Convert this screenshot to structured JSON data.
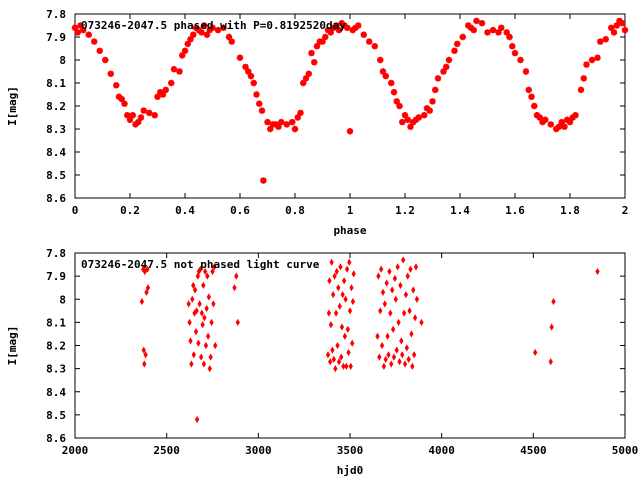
{
  "chart_data": [
    {
      "type": "scatter",
      "title": "073246-2047.5 phased with P=0.8192520day",
      "xlabel": "phase",
      "ylabel": "I[mag]",
      "xlim": [
        0,
        2
      ],
      "ylim": [
        8.6,
        7.8
      ],
      "y_inverted": true,
      "grid": false,
      "x_ticks": [
        "0",
        "0.2",
        "0.4",
        "0.6",
        "0.8",
        "1",
        "1.2",
        "1.4",
        "1.6",
        "1.8",
        "2"
      ],
      "y_ticks": [
        "7.8",
        "7.9",
        "8",
        "8.1",
        "8.2",
        "8.3",
        "8.4",
        "8.5",
        "8.6"
      ],
      "marker_color": "#ff0000",
      "marker": "filled-circle",
      "points": [
        [
          0.0,
          7.86
        ],
        [
          0.01,
          7.88
        ],
        [
          0.02,
          7.85
        ],
        [
          0.03,
          7.87
        ],
        [
          0.05,
          7.89
        ],
        [
          0.07,
          7.92
        ],
        [
          0.09,
          7.96
        ],
        [
          0.11,
          8.0
        ],
        [
          0.13,
          8.06
        ],
        [
          0.15,
          8.11
        ],
        [
          0.16,
          8.16
        ],
        [
          0.17,
          8.17
        ],
        [
          0.18,
          8.19
        ],
        [
          0.19,
          8.24
        ],
        [
          0.2,
          8.26
        ],
        [
          0.21,
          8.24
        ],
        [
          0.22,
          8.28
        ],
        [
          0.23,
          8.27
        ],
        [
          0.24,
          8.25
        ],
        [
          0.25,
          8.22
        ],
        [
          0.27,
          8.23
        ],
        [
          0.29,
          8.24
        ],
        [
          0.3,
          8.16
        ],
        [
          0.31,
          8.14
        ],
        [
          0.32,
          8.15
        ],
        [
          0.33,
          8.13
        ],
        [
          0.35,
          8.1
        ],
        [
          0.36,
          8.04
        ],
        [
          0.38,
          8.05
        ],
        [
          0.39,
          7.98
        ],
        [
          0.4,
          7.96
        ],
        [
          0.41,
          7.93
        ],
        [
          0.42,
          7.91
        ],
        [
          0.43,
          7.89
        ],
        [
          0.44,
          7.86
        ],
        [
          0.45,
          7.87
        ],
        [
          0.46,
          7.88
        ],
        [
          0.47,
          7.85
        ],
        [
          0.48,
          7.89
        ],
        [
          0.49,
          7.87
        ],
        [
          0.5,
          7.86
        ],
        [
          0.52,
          7.87
        ],
        [
          0.54,
          7.86
        ],
        [
          0.56,
          7.9
        ],
        [
          0.57,
          7.92
        ],
        [
          0.6,
          7.99
        ],
        [
          0.62,
          8.03
        ],
        [
          0.63,
          8.05
        ],
        [
          0.64,
          8.07
        ],
        [
          0.65,
          8.1
        ],
        [
          0.66,
          8.15
        ],
        [
          0.67,
          8.19
        ],
        [
          0.68,
          8.22
        ],
        [
          0.685,
          8.524
        ],
        [
          0.7,
          8.27
        ],
        [
          0.71,
          8.3
        ],
        [
          0.72,
          8.28
        ],
        [
          0.73,
          8.28
        ],
        [
          0.74,
          8.29
        ],
        [
          0.75,
          8.27
        ],
        [
          0.77,
          8.28
        ],
        [
          0.79,
          8.27
        ],
        [
          0.8,
          8.3
        ],
        [
          0.81,
          8.25
        ],
        [
          0.82,
          8.23
        ],
        [
          0.83,
          8.1
        ],
        [
          0.84,
          8.08
        ],
        [
          0.85,
          8.06
        ],
        [
          0.86,
          7.97
        ],
        [
          0.87,
          8.01
        ],
        [
          0.88,
          7.94
        ],
        [
          0.89,
          7.92
        ],
        [
          0.9,
          7.92
        ],
        [
          0.91,
          7.9
        ],
        [
          0.92,
          7.87
        ],
        [
          0.93,
          7.88
        ],
        [
          0.94,
          7.86
        ],
        [
          0.95,
          7.85
        ],
        [
          0.96,
          7.87
        ],
        [
          0.97,
          7.84
        ],
        [
          0.98,
          7.85
        ],
        [
          0.99,
          7.86
        ],
        [
          1.0,
          8.31
        ],
        [
          1.01,
          7.87
        ],
        [
          1.02,
          7.86
        ],
        [
          1.03,
          7.85
        ],
        [
          1.05,
          7.89
        ],
        [
          1.07,
          7.92
        ],
        [
          1.09,
          7.94
        ],
        [
          1.11,
          8.0
        ],
        [
          1.12,
          8.05
        ],
        [
          1.13,
          8.07
        ],
        [
          1.15,
          8.1
        ],
        [
          1.16,
          8.14
        ],
        [
          1.17,
          8.18
        ],
        [
          1.18,
          8.2
        ],
        [
          1.19,
          8.27
        ],
        [
          1.2,
          8.24
        ],
        [
          1.21,
          8.26
        ],
        [
          1.22,
          8.29
        ],
        [
          1.23,
          8.27
        ],
        [
          1.24,
          8.26
        ],
        [
          1.25,
          8.25
        ],
        [
          1.27,
          8.24
        ],
        [
          1.28,
          8.21
        ],
        [
          1.29,
          8.22
        ],
        [
          1.3,
          8.18
        ],
        [
          1.31,
          8.13
        ],
        [
          1.32,
          8.08
        ],
        [
          1.34,
          8.05
        ],
        [
          1.35,
          8.03
        ],
        [
          1.36,
          8.0
        ],
        [
          1.38,
          7.96
        ],
        [
          1.39,
          7.93
        ],
        [
          1.41,
          7.9
        ],
        [
          1.43,
          7.85
        ],
        [
          1.44,
          7.86
        ],
        [
          1.45,
          7.87
        ],
        [
          1.46,
          7.83
        ],
        [
          1.48,
          7.84
        ],
        [
          1.5,
          7.88
        ],
        [
          1.52,
          7.87
        ],
        [
          1.54,
          7.88
        ],
        [
          1.55,
          7.86
        ],
        [
          1.57,
          7.88
        ],
        [
          1.58,
          7.9
        ],
        [
          1.59,
          7.94
        ],
        [
          1.6,
          7.97
        ],
        [
          1.62,
          8.0
        ],
        [
          1.64,
          8.05
        ],
        [
          1.65,
          8.13
        ],
        [
          1.66,
          8.16
        ],
        [
          1.67,
          8.2
        ],
        [
          1.68,
          8.24
        ],
        [
          1.69,
          8.25
        ],
        [
          1.7,
          8.27
        ],
        [
          1.71,
          8.26
        ],
        [
          1.73,
          8.28
        ],
        [
          1.75,
          8.3
        ],
        [
          1.76,
          8.29
        ],
        [
          1.77,
          8.27
        ],
        [
          1.78,
          8.29
        ],
        [
          1.79,
          8.26
        ],
        [
          1.8,
          8.27
        ],
        [
          1.81,
          8.25
        ],
        [
          1.82,
          8.24
        ],
        [
          1.84,
          8.13
        ],
        [
          1.85,
          8.08
        ],
        [
          1.86,
          8.02
        ],
        [
          1.88,
          8.0
        ],
        [
          1.9,
          7.99
        ],
        [
          1.91,
          7.92
        ],
        [
          1.93,
          7.91
        ],
        [
          1.95,
          7.86
        ],
        [
          1.96,
          7.88
        ],
        [
          1.97,
          7.85
        ],
        [
          1.98,
          7.83
        ],
        [
          1.99,
          7.84
        ],
        [
          2.0,
          7.87
        ]
      ]
    },
    {
      "type": "scatter",
      "title": "073246-2047.5 not phased light curve",
      "xlabel": "hjd0",
      "ylabel": "I[mag]",
      "xlim": [
        2000,
        5000
      ],
      "ylim": [
        8.6,
        7.8
      ],
      "y_inverted": true,
      "grid": false,
      "x_ticks": [
        "2000",
        "2500",
        "3000",
        "3500",
        "4000",
        "4500",
        "5000"
      ],
      "y_ticks": [
        "7.8",
        "7.9",
        "8",
        "8.1",
        "8.2",
        "8.3",
        "8.4",
        "8.5",
        "8.6"
      ],
      "marker_color": "#ff0000",
      "marker": "diamond",
      "points": [
        [
          2365,
          8.01
        ],
        [
          2372,
          7.87
        ],
        [
          2375,
          8.22
        ],
        [
          2378,
          8.28
        ],
        [
          2381,
          7.88
        ],
        [
          2385,
          8.24
        ],
        [
          2390,
          7.97
        ],
        [
          2395,
          7.87
        ],
        [
          2398,
          7.95
        ],
        [
          2620,
          8.02
        ],
        [
          2625,
          8.1
        ],
        [
          2630,
          8.18
        ],
        [
          2635,
          8.28
        ],
        [
          2640,
          8.0
        ],
        [
          2645,
          7.94
        ],
        [
          2648,
          8.24
        ],
        [
          2652,
          8.06
        ],
        [
          2655,
          7.96
        ],
        [
          2660,
          8.14
        ],
        [
          2663,
          8.05
        ],
        [
          2666,
          8.52
        ],
        [
          2670,
          7.9
        ],
        [
          2673,
          8.19
        ],
        [
          2676,
          7.88
        ],
        [
          2680,
          8.02
        ],
        [
          2684,
          7.87
        ],
        [
          2688,
          8.25
        ],
        [
          2692,
          8.06
        ],
        [
          2696,
          8.11
        ],
        [
          2700,
          7.94
        ],
        [
          2703,
          8.28
        ],
        [
          2706,
          8.08
        ],
        [
          2710,
          7.88
        ],
        [
          2714,
          8.2
        ],
        [
          2718,
          8.04
        ],
        [
          2722,
          7.9
        ],
        [
          2726,
          8.16
        ],
        [
          2730,
          7.99
        ],
        [
          2735,
          8.3
        ],
        [
          2740,
          8.25
        ],
        [
          2745,
          8.1
        ],
        [
          2750,
          7.88
        ],
        [
          2755,
          8.02
        ],
        [
          2760,
          7.86
        ],
        [
          2765,
          8.2
        ],
        [
          2870,
          7.95
        ],
        [
          2880,
          7.9
        ],
        [
          2888,
          8.1
        ],
        [
          3380,
          8.24
        ],
        [
          3385,
          8.06
        ],
        [
          3388,
          7.92
        ],
        [
          3392,
          8.27
        ],
        [
          3396,
          8.11
        ],
        [
          3400,
          7.84
        ],
        [
          3404,
          8.22
        ],
        [
          3408,
          7.98
        ],
        [
          3412,
          8.26
        ],
        [
          3416,
          7.9
        ],
        [
          3420,
          8.3
        ],
        [
          3424,
          8.06
        ],
        [
          3428,
          7.88
        ],
        [
          3432,
          8.2
        ],
        [
          3436,
          7.95
        ],
        [
          3440,
          8.27
        ],
        [
          3444,
          8.03
        ],
        [
          3448,
          7.86
        ],
        [
          3452,
          8.25
        ],
        [
          3456,
          8.12
        ],
        [
          3460,
          7.98
        ],
        [
          3464,
          8.29
        ],
        [
          3468,
          7.92
        ],
        [
          3472,
          8.16
        ],
        [
          3476,
          8.0
        ],
        [
          3480,
          8.29
        ],
        [
          3484,
          7.87
        ],
        [
          3488,
          8.13
        ],
        [
          3492,
          8.23
        ],
        [
          3496,
          7.84
        ],
        [
          3500,
          8.05
        ],
        [
          3504,
          8.29
        ],
        [
          3508,
          7.95
        ],
        [
          3512,
          8.19
        ],
        [
          3516,
          8.01
        ],
        [
          3520,
          7.89
        ],
        [
          3650,
          8.16
        ],
        [
          3655,
          7.9
        ],
        [
          3660,
          8.25
        ],
        [
          3665,
          8.05
        ],
        [
          3670,
          7.87
        ],
        [
          3675,
          8.2
        ],
        [
          3680,
          7.97
        ],
        [
          3685,
          8.29
        ],
        [
          3690,
          8.02
        ],
        [
          3695,
          8.26
        ],
        [
          3700,
          7.93
        ],
        [
          3705,
          8.16
        ],
        [
          3710,
          8.24
        ],
        [
          3715,
          7.88
        ],
        [
          3720,
          8.06
        ],
        [
          3725,
          8.28
        ],
        [
          3730,
          7.96
        ],
        [
          3735,
          8.13
        ],
        [
          3740,
          8.25
        ],
        [
          3745,
          7.91
        ],
        [
          3750,
          8.0
        ],
        [
          3755,
          8.22
        ],
        [
          3760,
          7.86
        ],
        [
          3765,
          8.1
        ],
        [
          3770,
          8.27
        ],
        [
          3775,
          7.94
        ],
        [
          3780,
          8.18
        ],
        [
          3785,
          8.24
        ],
        [
          3790,
          7.83
        ],
        [
          3795,
          8.06
        ],
        [
          3800,
          8.28
        ],
        [
          3805,
          7.98
        ],
        [
          3810,
          8.21
        ],
        [
          3815,
          7.9
        ],
        [
          3820,
          8.26
        ],
        [
          3825,
          8.05
        ],
        [
          3830,
          7.87
        ],
        [
          3835,
          8.15
        ],
        [
          3840,
          8.29
        ],
        [
          3845,
          7.96
        ],
        [
          3850,
          8.24
        ],
        [
          3855,
          8.08
        ],
        [
          3860,
          7.86
        ],
        [
          3865,
          8.0
        ],
        [
          3890,
          8.1
        ],
        [
          4510,
          8.23
        ],
        [
          4595,
          8.27
        ],
        [
          4600,
          8.12
        ],
        [
          4610,
          8.01
        ],
        [
          4850,
          7.88
        ]
      ]
    }
  ]
}
